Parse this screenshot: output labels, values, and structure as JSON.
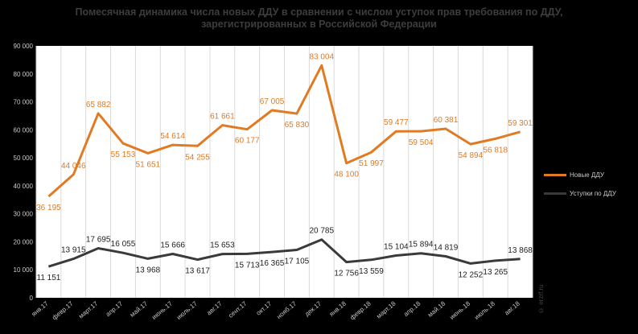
{
  "title": {
    "line1": "Помесячная динамика числа новых ДДУ в сравнении с числом уступок прав требования по ДДУ,",
    "line2": "зарегистрированных в Российской Федерации"
  },
  "source": "© erzrf.ru",
  "colors": {
    "background": "#000000",
    "plot_background": "#ffffff",
    "grid": "#d9d9d9",
    "new_series": "#e07b24",
    "assignment_series": "#3a3a3a"
  },
  "chart_data": {
    "type": "line",
    "categories": [
      "янв.17",
      "февр.17",
      "март.17",
      "апр.17",
      "май.17",
      "июнь.17",
      "июль.17",
      "авг.17",
      "сент.17",
      "окт.17",
      "нояб.17",
      "дек.17",
      "янв.18",
      "февр.18",
      "март.18",
      "апр.18",
      "май.18",
      "июнь.18",
      "июль.18",
      "авг.18"
    ],
    "ylim": [
      0,
      90000
    ],
    "yticks": [
      0,
      10000,
      20000,
      30000,
      40000,
      50000,
      60000,
      70000,
      80000,
      90000
    ],
    "ytick_labels": [
      "0",
      "10 000",
      "20 000",
      "30 000",
      "40 000",
      "50 000",
      "60 000",
      "70 000",
      "80 000",
      "90 000"
    ],
    "grid": "vertical",
    "legend_position": "right",
    "series": [
      {
        "name": "Новые ДДУ",
        "color": "#e07b24",
        "values": [
          36195,
          44046,
          65882,
          55153,
          51651,
          54614,
          54255,
          61661,
          60177,
          67005,
          65830,
          83004,
          48100,
          51997,
          59477,
          59504,
          60381,
          54894,
          56818,
          59301
        ],
        "labels": [
          "36 195",
          "44 046",
          "65 882",
          "55 153",
          "51 651",
          "54 614",
          "54 255",
          "61 661",
          "60 177",
          "67 005",
          "65 830",
          "83 004",
          "48 100",
          "51 997",
          "59 477",
          "59 504",
          "60 381",
          "54 894",
          "56 818",
          "59 301"
        ]
      },
      {
        "name": "Уступки по ДДУ",
        "color": "#3a3a3a",
        "values": [
          11151,
          13915,
          17695,
          16055,
          13968,
          15666,
          13617,
          15653,
          15713,
          16365,
          17105,
          20785,
          12756,
          13559,
          15104,
          15894,
          14819,
          12252,
          13265,
          13868
        ],
        "labels": [
          "11 151",
          "13 915",
          "17 695",
          "16 055",
          "13 968",
          "15 666",
          "13 617",
          "15 653",
          "15 713",
          "16 365",
          "17 105",
          "20 785",
          "12 756",
          "13 559",
          "15 104",
          "15 894",
          "14 819",
          "12 252",
          "13 265",
          "13 868"
        ]
      }
    ]
  }
}
